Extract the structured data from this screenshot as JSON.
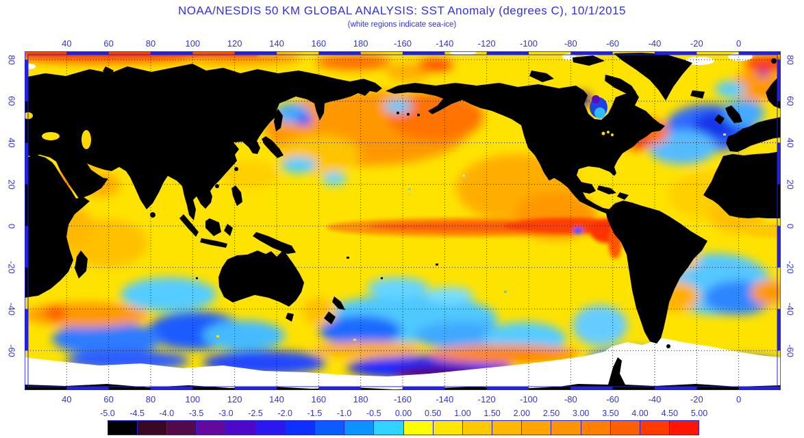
{
  "title": "NOAA/NESDIS 50 KM GLOBAL ANALYSIS: SST Anomaly (degrees C), 10/1/2015",
  "subtitle": "(white regions indicate sea-ice)",
  "colors": {
    "text_blue": "#3232d8",
    "frame_blue": "#2222dd",
    "land": "#000000",
    "sea_ice": "#ffffff",
    "ocean_base": "#ffe300",
    "gridline": "#000000"
  },
  "map": {
    "projection": "equirectangular, Pacific-centered",
    "lon_domain": [
      20,
      380
    ],
    "lat_domain": [
      84,
      -79
    ],
    "lon_tick_labels": [
      "40",
      "60",
      "80",
      "100",
      "120",
      "140",
      "160",
      "180",
      "-160",
      "-140",
      "-120",
      "-100",
      "-80",
      "-60",
      "-40",
      "-20",
      "0"
    ],
    "lon_tick_values": [
      40,
      60,
      80,
      100,
      120,
      140,
      160,
      180,
      -160,
      -140,
      -120,
      -100,
      -80,
      -60,
      -40,
      -20,
      0
    ],
    "lat_tick_labels": [
      "80",
      "60",
      "40",
      "20",
      "0",
      "-20",
      "-40",
      "-60"
    ],
    "lat_tick_values": [
      80,
      60,
      40,
      20,
      0,
      -20,
      -40,
      -60
    ],
    "grid_interval_degrees": 20
  },
  "colorbar": {
    "units": "degrees C",
    "min": -5.0,
    "max": 5.0,
    "step": 0.5,
    "tick_labels": [
      "-5.0",
      "-4.5",
      "-4.0",
      "-3.5",
      "-3.0",
      "-2.5",
      "-2.0",
      "-1.5",
      "-1.0",
      "-0.5",
      "0.00",
      "0.50",
      "1.00",
      "1.50",
      "2.00",
      "2.50",
      "3.00",
      "3.50",
      "4.00",
      "4.50",
      "5.00"
    ],
    "cell_colors": [
      "#000000",
      "#380920",
      "#540a46",
      "#65099c",
      "#5008c8",
      "#2a18ee",
      "#0d2fff",
      "#0a5cff",
      "#0d93ff",
      "#30d5ff",
      "#fcff00",
      "#ffe600",
      "#ffc900",
      "#ffb800",
      "#ffa500",
      "#ff9400",
      "#ff8000",
      "#ff6000",
      "#ff3b00",
      "#ff1500"
    ]
  }
}
